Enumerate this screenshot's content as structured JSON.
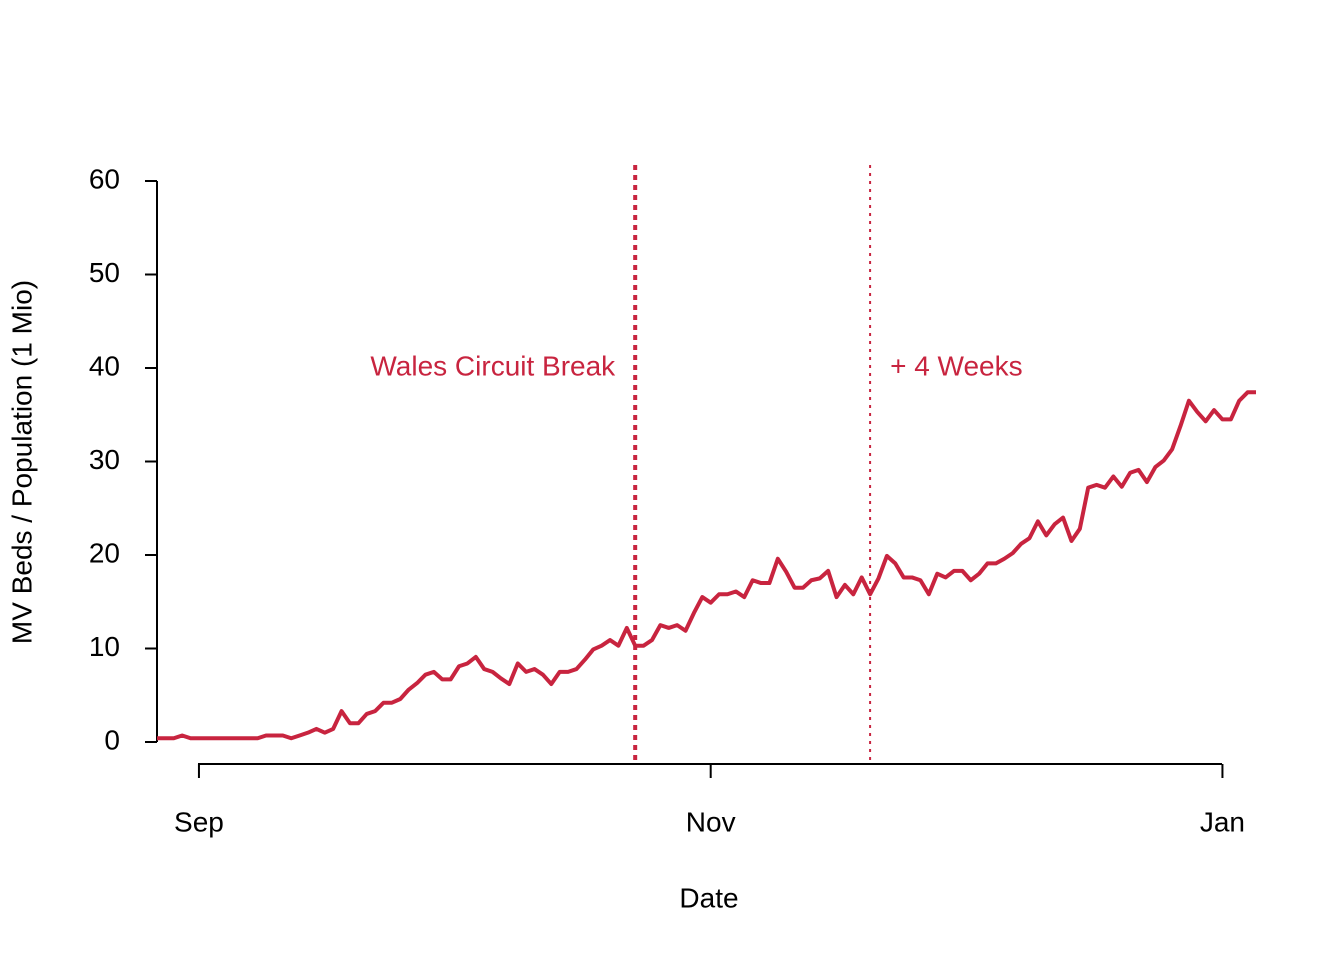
{
  "chart_data": {
    "type": "line",
    "xlabel": "Date",
    "ylabel": "MV Beds / Population (1 Mio)",
    "categories": [
      null,
      null,
      null,
      null,
      null,
      "Sep",
      null,
      null,
      null,
      null,
      null,
      null,
      null,
      null,
      null,
      null,
      null,
      null,
      null,
      null,
      null,
      null,
      null,
      null,
      null,
      null,
      null,
      null,
      null,
      null,
      null,
      null,
      null,
      null,
      null,
      null,
      null,
      null,
      null,
      null,
      null,
      null,
      null,
      null,
      null,
      null,
      null,
      null,
      null,
      null,
      null,
      null,
      null,
      null,
      null,
      null,
      null,
      null,
      null,
      null,
      null,
      null,
      null,
      null,
      null,
      null,
      "Nov",
      null,
      null,
      null,
      null,
      null,
      null,
      null,
      null,
      null,
      null,
      null,
      null,
      null,
      null,
      null,
      null,
      null,
      null,
      null,
      null,
      null,
      null,
      null,
      null,
      null,
      null,
      null,
      null,
      null,
      null,
      null,
      null,
      null,
      null,
      null,
      null,
      null,
      null,
      null,
      null,
      null,
      null,
      null,
      null,
      null,
      null,
      null,
      null,
      null,
      null,
      null,
      null,
      null,
      null,
      null,
      null,
      null,
      null,
      null,
      null,
      "Jan",
      null,
      null,
      null,
      null
    ],
    "series": [
      {
        "color": "#c8243f",
        "values": [
          0.4,
          0.4,
          0.4,
          0.7,
          0.4,
          0.4,
          0.4,
          0.4,
          0.4,
          0.4,
          0.4,
          0.4,
          0.4,
          0.7,
          0.7,
          0.7,
          0.4,
          0.7,
          1.0,
          1.4,
          1.0,
          1.4,
          3.3,
          2.0,
          2.0,
          3.0,
          3.3,
          4.2,
          4.2,
          4.6,
          5.6,
          6.3,
          7.2,
          7.5,
          6.7,
          6.7,
          8.1,
          8.4,
          9.1,
          7.8,
          7.5,
          6.8,
          6.2,
          8.4,
          7.5,
          7.8,
          7.2,
          6.2,
          7.5,
          7.5,
          7.8,
          8.8,
          9.9,
          10.3,
          10.9,
          10.3,
          12.2,
          10.3,
          10.3,
          10.9,
          12.5,
          12.2,
          12.5,
          11.9,
          13.8,
          15.5,
          14.9,
          15.8,
          15.8,
          16.1,
          15.5,
          17.3,
          17.0,
          17.0,
          19.6,
          18.2,
          16.5,
          16.5,
          17.3,
          17.5,
          18.3,
          15.5,
          16.8,
          15.8,
          17.6,
          15.8,
          17.5,
          19.9,
          19.1,
          17.6,
          17.6,
          17.3,
          15.8,
          18.0,
          17.6,
          18.3,
          18.3,
          17.3,
          18.0,
          19.1,
          19.1,
          19.6,
          20.2,
          21.2,
          21.8,
          23.6,
          22.1,
          23.3,
          24.0,
          21.5,
          22.8,
          27.2,
          27.5,
          27.2,
          28.4,
          27.3,
          28.8,
          29.1,
          27.8,
          29.4,
          30.1,
          31.3,
          33.8,
          36.5,
          35.3,
          34.3,
          35.5,
          34.5,
          34.5,
          36.5,
          37.4,
          37.4
        ]
      }
    ],
    "ylim": [
      0,
      60
    ],
    "yticks": [
      0,
      10,
      20,
      30,
      40,
      50,
      60
    ],
    "annotations": [
      {
        "text": "Wales Circuit Break",
        "x": 57,
        "y": 40,
        "side": "left",
        "line": "thick",
        "color": "#c8243f"
      },
      {
        "text": "+ 4 Weeks",
        "x": 85,
        "y": 40,
        "side": "right",
        "line": "thin",
        "color": "#c8243f"
      }
    ]
  }
}
